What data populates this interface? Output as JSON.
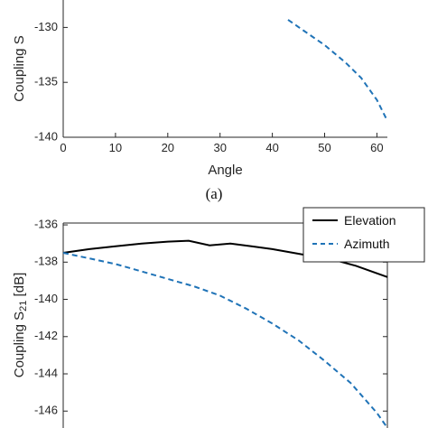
{
  "colors": {
    "axis": "#262626",
    "elevation": "#000000",
    "azimuth": "#1f73b7"
  },
  "chart_data": [
    {
      "type": "line",
      "caption": "(a)",
      "xlabel": "Angle",
      "ylabel": "Coupling S",
      "xlim": [
        0,
        62
      ],
      "ylim": [
        -140,
        -127.5
      ],
      "x_ticks": [
        0,
        10,
        20,
        30,
        40,
        50,
        60
      ],
      "x_tick_labels": [
        "0",
        "10",
        "20",
        "30",
        "40",
        "50",
        "60"
      ],
      "y_ticks": [
        -130,
        -135,
        -140
      ],
      "y_tick_labels": [
        "-130",
        "-135",
        "-140"
      ],
      "grid": false,
      "series": [
        {
          "style": "dashed",
          "color": "#1f73b7",
          "x": [
            43,
            46,
            50,
            54,
            57,
            60,
            62
          ],
          "y": [
            -129.3,
            -130.3,
            -131.6,
            -133.2,
            -134.6,
            -136.6,
            -138.5
          ]
        }
      ]
    },
    {
      "type": "line",
      "xlabel": "",
      "ylabel": "Coupling S",
      "ylabel_sub": "21",
      "ylabel_unit": " [dB]",
      "xlim": [
        0,
        62
      ],
      "ylim": [
        -147.2,
        -135.9
      ],
      "y_ticks": [
        -136,
        -138,
        -140,
        -142,
        -144,
        -146
      ],
      "y_tick_labels": [
        "-136",
        "-138",
        "-140",
        "-142",
        "-144",
        "-146"
      ],
      "grid": false,
      "legend": {
        "placement": "top-right",
        "entries": [
          "Elevation",
          "Azimuth"
        ]
      },
      "series": [
        {
          "name": "Elevation",
          "style": "solid",
          "color": "#000000",
          "x": [
            0,
            5,
            10,
            15,
            20,
            24,
            28,
            32,
            36,
            40,
            44,
            48,
            52,
            56,
            60,
            62
          ],
          "y": [
            -137.5,
            -137.3,
            -137.15,
            -137.0,
            -136.9,
            -136.85,
            -137.1,
            -137.0,
            -137.15,
            -137.3,
            -137.5,
            -137.7,
            -137.9,
            -138.2,
            -138.6,
            -138.8
          ]
        },
        {
          "name": "Azimuth",
          "style": "dashed",
          "color": "#1f73b7",
          "x": [
            0,
            5,
            10,
            15,
            20,
            25,
            30,
            35,
            40,
            45,
            50,
            55,
            60,
            62
          ],
          "y": [
            -137.5,
            -137.8,
            -138.1,
            -138.5,
            -138.9,
            -139.3,
            -139.8,
            -140.5,
            -141.3,
            -142.2,
            -143.3,
            -144.5,
            -146.1,
            -146.9
          ]
        }
      ]
    }
  ]
}
